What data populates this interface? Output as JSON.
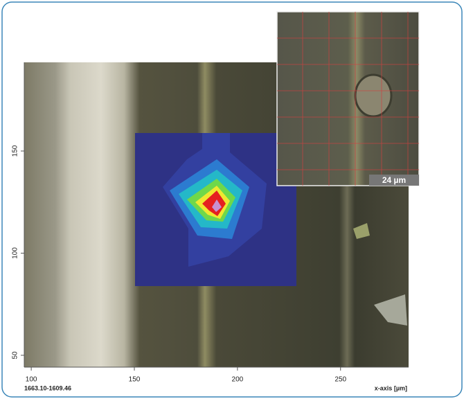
{
  "chart_data": {
    "type": "image",
    "xlim": [
      96.6,
      283
    ],
    "ylim": [
      44.2,
      193.4
    ],
    "xticks": [
      100,
      150,
      200,
      250
    ],
    "yticks": [
      50,
      100,
      150
    ],
    "xlabel": "x-axis [µm]",
    "corner_label": "1663.10-1609.46",
    "scale_bar": "24 µm"
  }
}
